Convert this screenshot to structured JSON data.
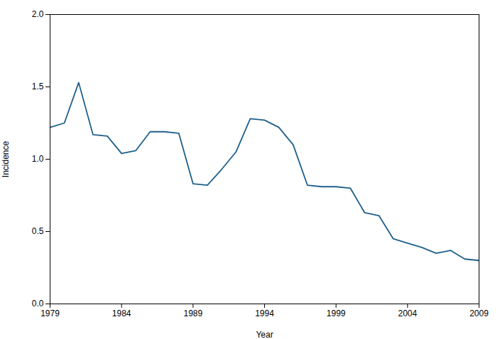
{
  "chart_data": {
    "type": "line",
    "x": [
      1979,
      1980,
      1981,
      1982,
      1983,
      1984,
      1985,
      1986,
      1987,
      1988,
      1989,
      1990,
      1991,
      1992,
      1993,
      1994,
      1995,
      1996,
      1997,
      1998,
      1999,
      2000,
      2001,
      2002,
      2003,
      2004,
      2005,
      2006,
      2007,
      2008,
      2009
    ],
    "values": [
      1.22,
      1.25,
      1.53,
      1.17,
      1.16,
      1.04,
      1.06,
      1.19,
      1.19,
      1.18,
      0.83,
      0.82,
      0.93,
      1.05,
      1.28,
      1.27,
      1.22,
      1.1,
      0.82,
      0.81,
      0.81,
      0.8,
      0.63,
      0.61,
      0.45,
      0.42,
      0.39,
      0.35,
      0.37,
      0.31,
      0.3
    ],
    "color": "#1F5F8B",
    "xlabel": "Year",
    "ylabel": "Incidence",
    "xlim": [
      1979,
      2009
    ],
    "ylim": [
      0.0,
      2.0
    ],
    "xticks": [
      1979,
      1984,
      1989,
      1994,
      1999,
      2004,
      2009
    ],
    "yticks": [
      {
        "value": 0,
        "label": "0.0"
      },
      0.5,
      {
        "value": 1,
        "label": "1.0"
      },
      1.5,
      {
        "value": 2,
        "label": "2.0"
      }
    ],
    "grid": false
  }
}
